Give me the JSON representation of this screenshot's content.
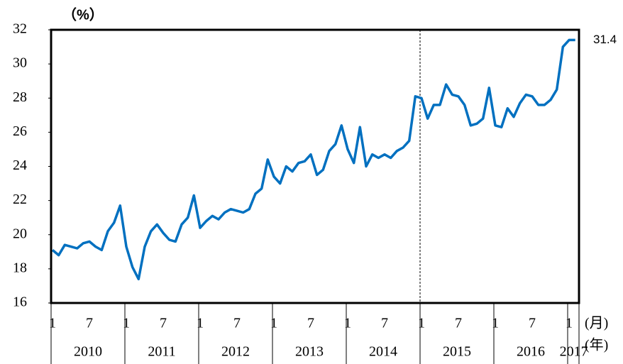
{
  "chart_data": {
    "type": "line",
    "y_axis_label": "（%）",
    "x_unit_month": "(月)",
    "x_unit_year": "(年)",
    "categories": [
      "1",
      null,
      null,
      null,
      null,
      null,
      "7",
      null,
      null,
      null,
      null,
      null,
      "1",
      null,
      null,
      null,
      null,
      null,
      "7",
      null,
      null,
      null,
      null,
      null,
      "1",
      null,
      null,
      null,
      null,
      null,
      "7",
      null,
      null,
      null,
      null,
      null,
      "1",
      null,
      null,
      null,
      null,
      null,
      "7",
      null,
      null,
      null,
      null,
      null,
      "1",
      null,
      null,
      null,
      null,
      null,
      "7",
      null,
      null,
      null,
      null,
      null,
      "1",
      null,
      null,
      null,
      null,
      null,
      "7",
      null,
      null,
      null,
      null,
      null,
      "1",
      null,
      null,
      null,
      null,
      null,
      "7",
      null,
      null,
      null,
      null,
      null,
      "1",
      null
    ],
    "years": [
      "2010",
      "2011",
      "2012",
      "2013",
      "2014",
      "2015",
      "2016",
      "2017"
    ],
    "series": [
      {
        "color": "#0070c0",
        "values": [
          19.1,
          18.8,
          19.4,
          19.3,
          19.2,
          19.5,
          19.6,
          19.3,
          19.1,
          20.2,
          20.7,
          21.7,
          19.3,
          18.1,
          17.4,
          19.3,
          20.2,
          20.6,
          20.1,
          19.7,
          19.6,
          20.6,
          21.0,
          22.3,
          20.4,
          20.8,
          21.1,
          20.9,
          21.3,
          21.5,
          21.4,
          21.3,
          21.5,
          22.4,
          22.7,
          24.4,
          23.4,
          23.0,
          24.0,
          23.7,
          24.2,
          24.3,
          24.7,
          23.5,
          23.8,
          24.9,
          25.3,
          26.4,
          25.0,
          24.2,
          26.3,
          24.0,
          24.7,
          24.5,
          24.7,
          24.5,
          24.9,
          25.1,
          25.5,
          28.1,
          28.0,
          26.8,
          27.6,
          27.6,
          28.8,
          28.2,
          28.1,
          27.6,
          26.4,
          26.5,
          26.8,
          28.6,
          26.4,
          26.3,
          27.4,
          26.9,
          27.7,
          28.2,
          28.1,
          27.6,
          27.6,
          27.9,
          28.5,
          31.0,
          31.4,
          31.4
        ]
      }
    ],
    "ylim": [
      16,
      32
    ],
    "yticks": [
      16,
      18,
      20,
      22,
      24,
      26,
      28,
      30,
      32
    ]
  }
}
